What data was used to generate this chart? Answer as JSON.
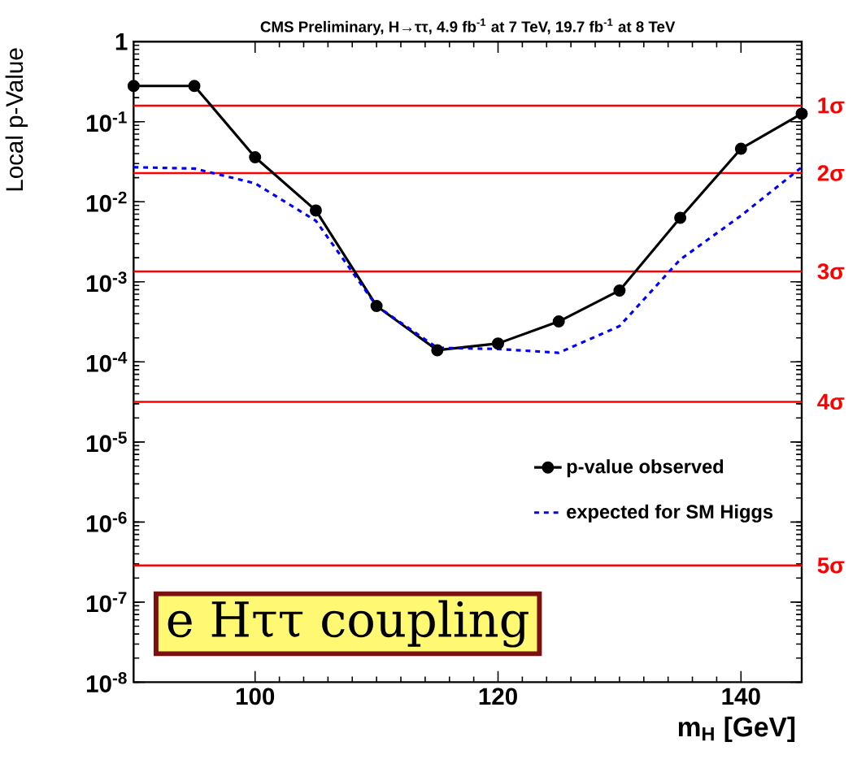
{
  "chart_data": {
    "type": "line",
    "title": "CMS Preliminary, H→ττ, 4.9 fb$^{-1}$ at 7 TeV, 19.7 fb$^{-1}$ at 8 TeV",
    "xlabel": "m$_{H}$ [GeV]",
    "ylabel": "Local p-Value",
    "log": "y",
    "grid": false,
    "legend": "right",
    "xlim": [
      90,
      145
    ],
    "xticks": [
      100,
      120,
      140
    ],
    "ylim": [
      1e-08,
      1
    ],
    "yticks": [
      {
        "value": 1e-08,
        "label": "10$^{-8}$"
      },
      {
        "value": 1e-07,
        "label": "10$^{-7}$"
      },
      {
        "value": 1e-06,
        "label": "10$^{-6}$"
      },
      {
        "value": 1e-05,
        "label": "10$^{-5}$"
      },
      {
        "value": 0.0001,
        "label": "10$^{-4}$"
      },
      {
        "value": 0.001,
        "label": "10$^{-3}$"
      },
      {
        "value": 0.01,
        "label": "10$^{-2}$"
      },
      {
        "value": 0.1,
        "label": "10$^{-1}$"
      },
      1
    ],
    "x": [
      90,
      95,
      100,
      105,
      110,
      115,
      120,
      125,
      130,
      135,
      140,
      145
    ],
    "series": [
      {
        "name": "p-value observed",
        "color": "#000000",
        "marker": "circle",
        "line_style": "solid",
        "values": [
          0.28,
          0.28,
          0.036,
          0.0078,
          0.0005,
          0.00014,
          0.00017,
          0.00032,
          0.00078,
          0.0063,
          0.046,
          0.126
        ]
      },
      {
        "name": "expected for SM Higgs",
        "color": "#0000ff",
        "marker": "none",
        "line_style": "dashed",
        "values": [
          0.027,
          0.026,
          0.017,
          0.0058,
          0.0005,
          0.00015,
          0.000145,
          0.00013,
          0.00028,
          0.0019,
          0.0067,
          0.027
        ]
      }
    ],
    "ref_lines": [
      {
        "axis": "y",
        "value": 0.159,
        "label": "1σ",
        "color": "#ff0000"
      },
      {
        "axis": "y",
        "value": 0.0228,
        "label": "2σ",
        "color": "#ff0000"
      },
      {
        "axis": "y",
        "value": 0.00135,
        "label": "3σ",
        "color": "#ff0000"
      },
      {
        "axis": "y",
        "value": 3.17e-05,
        "label": "4σ",
        "color": "#ff0000"
      },
      {
        "axis": "y",
        "value": 2.87e-07,
        "label": "5σ",
        "color": "#ff0000"
      }
    ],
    "annotations": [
      "e Hττ coupling"
    ]
  }
}
